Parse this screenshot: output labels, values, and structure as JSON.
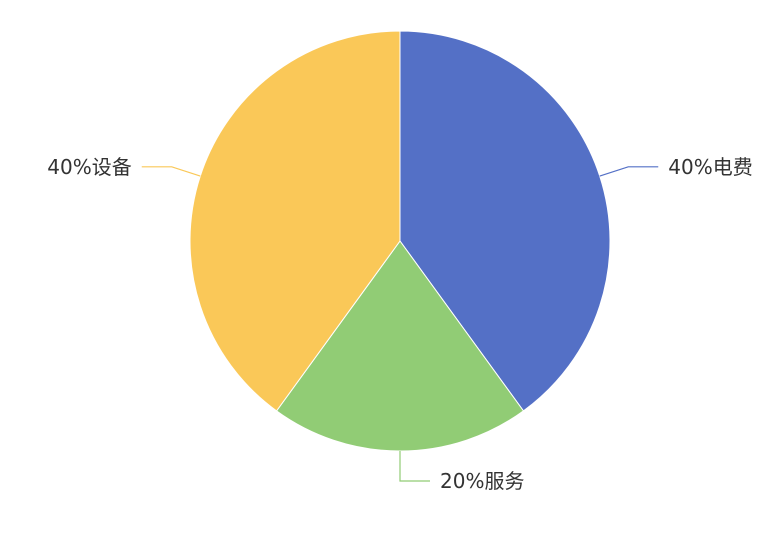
{
  "chart_data": {
    "type": "pie",
    "title": "",
    "start_angle": "top, clockwise",
    "slices": [
      {
        "name": "电费",
        "value": 40,
        "label": "40%电费",
        "color": "#5470c6"
      },
      {
        "name": "服务",
        "value": 20,
        "label": "20%服务",
        "color": "#91cc75"
      },
      {
        "name": "设备",
        "value": 40,
        "label": "40%设备",
        "color": "#fac858"
      }
    ],
    "legend": "none"
  }
}
